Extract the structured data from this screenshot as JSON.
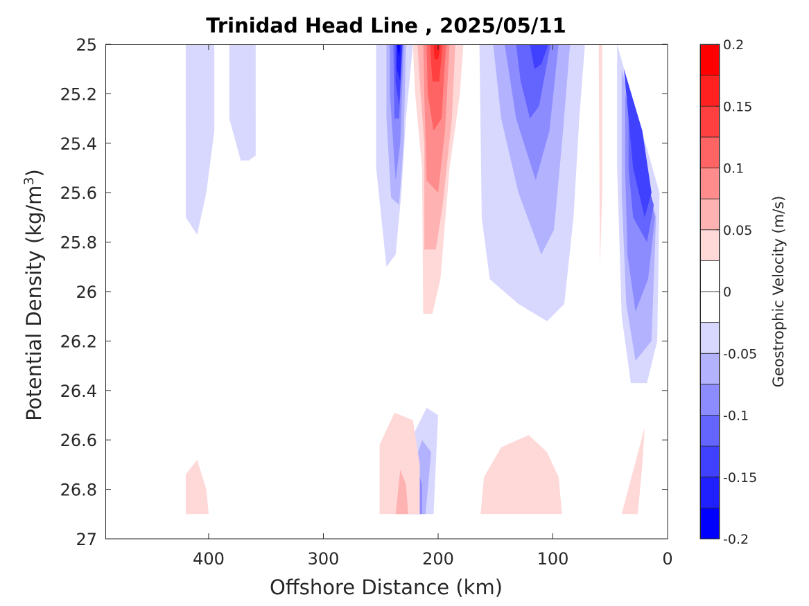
{
  "chart_data": {
    "type": "contour",
    "title": "Trinidad Head Line , 2025/05/11",
    "xlabel": "Offshore Distance (km)",
    "ylabel_main": "Potential Density (kg/m",
    "ylabel_sup": "3",
    "ylabel_tail": ")",
    "x_reversed": true,
    "y_reversed": true,
    "xlim": [
      0,
      490
    ],
    "ylim": [
      25,
      27
    ],
    "xticks": [
      400,
      300,
      200,
      100,
      0
    ],
    "yticks": [
      "25",
      "25.2",
      "25.4",
      "25.6",
      "25.8",
      "26",
      "26.2",
      "26.4",
      "26.6",
      "26.8",
      "27"
    ],
    "colorbar": {
      "label": "Geostrophic Velocity (m/s)",
      "range": [
        -0.2,
        0.2
      ],
      "step": 0.025,
      "ticks": [
        "0.2",
        "0.15",
        "0.1",
        "0.05",
        "0",
        "-0.05",
        "-0.1",
        "-0.15",
        "-0.2"
      ],
      "colors_low_to_high": [
        "#0000ff",
        "#2020ff",
        "#4040ff",
        "#6464ff",
        "#8c8cff",
        "#b2b2ff",
        "#d8d8ff",
        "#ffffff",
        "#ffffff",
        "#ffd8d8",
        "#ffb2b2",
        "#ff8c8c",
        "#ff6464",
        "#ff4040",
        "#ff2020",
        "#ff0000"
      ]
    },
    "regions": [
      {
        "level": -0.025,
        "points": [
          [
            420,
            25
          ],
          [
            395,
            25
          ],
          [
            395,
            25.35
          ],
          [
            402,
            25.6
          ],
          [
            410,
            25.77
          ],
          [
            420,
            25.7
          ]
        ]
      },
      {
        "level": -0.025,
        "points": [
          [
            382,
            25
          ],
          [
            359,
            25
          ],
          [
            359,
            25.45
          ],
          [
            365,
            25.47
          ],
          [
            372,
            25.47
          ],
          [
            382,
            25.3
          ]
        ]
      },
      {
        "level": -0.025,
        "points": [
          [
            254,
            25
          ],
          [
            222,
            25
          ],
          [
            228,
            25.3
          ],
          [
            232,
            25.6
          ],
          [
            237,
            25.85
          ],
          [
            245,
            25.9
          ],
          [
            254,
            25.5
          ]
        ]
      },
      {
        "level": -0.025,
        "points": [
          [
            164,
            25
          ],
          [
            72,
            25
          ],
          [
            77,
            25.3
          ],
          [
            82,
            25.7
          ],
          [
            90,
            26.05
          ],
          [
            105,
            26.12
          ],
          [
            130,
            26.05
          ],
          [
            155,
            25.95
          ],
          [
            162,
            25.7
          ]
        ]
      },
      {
        "level": -0.025,
        "points": [
          [
            44,
            25
          ],
          [
            7,
            25.6
          ],
          [
            9,
            26.2
          ],
          [
            18,
            26.37
          ],
          [
            32,
            26.37
          ],
          [
            40,
            26.1
          ],
          [
            44,
            25.5
          ]
        ]
      },
      {
        "level": -0.025,
        "points": [
          [
            232,
            26.9
          ],
          [
            204,
            26.9
          ],
          [
            200,
            26.5
          ],
          [
            210,
            26.47
          ],
          [
            224,
            26.6
          ]
        ]
      },
      {
        "level": -0.05,
        "points": [
          [
            245,
            25
          ],
          [
            228,
            25
          ],
          [
            230,
            25.4
          ],
          [
            234,
            25.65
          ],
          [
            241,
            25.62
          ],
          [
            245,
            25.3
          ]
        ]
      },
      {
        "level": -0.05,
        "points": [
          [
            152,
            25
          ],
          [
            85,
            25
          ],
          [
            92,
            25.4
          ],
          [
            99,
            25.75
          ],
          [
            110,
            25.85
          ],
          [
            130,
            25.6
          ],
          [
            145,
            25.3
          ]
        ]
      },
      {
        "level": -0.05,
        "points": [
          [
            40,
            25.1
          ],
          [
            10,
            25.7
          ],
          [
            14,
            26.2
          ],
          [
            28,
            26.28
          ],
          [
            36,
            26.05
          ],
          [
            40,
            25.6
          ]
        ]
      },
      {
        "level": -0.05,
        "points": [
          [
            227,
            26.9
          ],
          [
            211,
            26.9
          ],
          [
            206,
            26.65
          ],
          [
            214,
            26.6
          ],
          [
            221,
            26.7
          ]
        ]
      },
      {
        "level": -0.075,
        "points": [
          [
            242,
            25
          ],
          [
            230,
            25
          ],
          [
            233,
            25.4
          ],
          [
            237,
            25.55
          ],
          [
            242,
            25.2
          ]
        ]
      },
      {
        "level": -0.075,
        "points": [
          [
            142,
            25
          ],
          [
            95,
            25
          ],
          [
            103,
            25.35
          ],
          [
            115,
            25.55
          ],
          [
            132,
            25.3
          ]
        ]
      },
      {
        "level": -0.075,
        "points": [
          [
            37,
            25.2
          ],
          [
            11,
            25.7
          ],
          [
            17,
            25.95
          ],
          [
            28,
            26.08
          ],
          [
            35,
            25.85
          ],
          [
            37,
            25.5
          ]
        ]
      },
      {
        "level": -0.075,
        "points": [
          [
            222,
            26.9
          ],
          [
            214,
            26.9
          ],
          [
            214,
            26.78
          ],
          [
            218,
            26.72
          ]
        ]
      },
      {
        "level": -0.1,
        "points": [
          [
            239,
            25
          ],
          [
            231,
            25
          ],
          [
            234,
            25.3
          ],
          [
            238,
            25.3
          ]
        ]
      },
      {
        "level": -0.1,
        "points": [
          [
            132,
            25
          ],
          [
            102,
            25
          ],
          [
            112,
            25.25
          ],
          [
            120,
            25.3
          ],
          [
            128,
            25.15
          ]
        ]
      },
      {
        "level": -0.1,
        "points": [
          [
            34,
            25.3
          ],
          [
            12,
            25.65
          ],
          [
            18,
            25.8
          ],
          [
            30,
            25.7
          ],
          [
            34,
            25.5
          ]
        ]
      },
      {
        "level": -0.125,
        "points": [
          [
            237,
            25
          ],
          [
            231,
            25
          ],
          [
            234,
            25.25
          ],
          [
            237,
            25.15
          ]
        ]
      },
      {
        "level": -0.125,
        "points": [
          [
            120,
            25
          ],
          [
            104,
            25
          ],
          [
            110,
            25.08
          ],
          [
            116,
            25.1
          ]
        ]
      },
      {
        "level": -0.125,
        "points": [
          [
            38,
            25.1
          ],
          [
            22,
            25.35
          ],
          [
            14,
            25.6
          ],
          [
            20,
            25.7
          ],
          [
            30,
            25.5
          ]
        ]
      },
      {
        "level": -0.15,
        "points": [
          [
            236,
            25
          ],
          [
            232,
            25
          ],
          [
            233,
            25.15
          ],
          [
            236,
            25.1
          ]
        ]
      },
      {
        "level": -0.175,
        "points": [
          [
            236,
            25
          ],
          [
            233,
            25
          ],
          [
            234,
            25.05
          ]
        ]
      },
      {
        "level": 0.025,
        "points": [
          [
            222,
            25
          ],
          [
            178,
            25
          ],
          [
            181,
            25.2
          ],
          [
            190,
            25.5
          ],
          [
            198,
            25.95
          ],
          [
            205,
            26.09
          ],
          [
            213,
            26.09
          ],
          [
            214,
            25.5
          ],
          [
            220,
            25.2
          ]
        ]
      },
      {
        "level": 0.025,
        "points": [
          [
            60,
            25
          ],
          [
            57,
            25
          ],
          [
            57,
            25.6
          ],
          [
            59,
            25.9
          ]
        ]
      },
      {
        "level": 0.025,
        "points": [
          [
            420,
            26.9
          ],
          [
            400,
            26.9
          ],
          [
            402,
            26.8
          ],
          [
            410,
            26.68
          ],
          [
            420,
            26.74
          ]
        ]
      },
      {
        "level": 0.025,
        "points": [
          [
            251,
            26.9
          ],
          [
            216,
            26.9
          ],
          [
            216,
            26.7
          ],
          [
            222,
            26.52
          ],
          [
            238,
            26.49
          ],
          [
            251,
            26.62
          ]
        ]
      },
      {
        "level": 0.025,
        "points": [
          [
            163,
            26.9
          ],
          [
            92,
            26.9
          ],
          [
            95,
            26.75
          ],
          [
            105,
            26.65
          ],
          [
            121,
            26.58
          ],
          [
            145,
            26.63
          ],
          [
            160,
            26.75
          ]
        ]
      },
      {
        "level": 0.025,
        "points": [
          [
            40,
            26.9
          ],
          [
            20,
            26.55
          ],
          [
            22,
            26.7
          ],
          [
            26,
            26.9
          ]
        ]
      },
      {
        "level": 0.05,
        "points": [
          [
            218,
            25
          ],
          [
            185,
            25
          ],
          [
            188,
            25.3
          ],
          [
            196,
            25.65
          ],
          [
            202,
            25.83
          ],
          [
            212,
            25.83
          ],
          [
            212,
            25.4
          ],
          [
            216,
            25.15
          ]
        ]
      },
      {
        "level": 0.05,
        "points": [
          [
            237,
            26.9
          ],
          [
            226,
            26.9
          ],
          [
            228,
            26.78
          ],
          [
            233,
            26.72
          ]
        ]
      },
      {
        "level": 0.075,
        "points": [
          [
            213,
            25
          ],
          [
            190,
            25
          ],
          [
            194,
            25.35
          ],
          [
            200,
            25.6
          ],
          [
            210,
            25.55
          ],
          [
            212,
            25.2
          ]
        ]
      },
      {
        "level": 0.1,
        "points": [
          [
            210,
            25
          ],
          [
            193,
            25
          ],
          [
            197,
            25.3
          ],
          [
            204,
            25.35
          ],
          [
            209,
            25.2
          ]
        ]
      },
      {
        "level": 0.125,
        "points": [
          [
            207,
            25
          ],
          [
            196,
            25
          ],
          [
            199,
            25.15
          ],
          [
            205,
            25.15
          ]
        ]
      },
      {
        "level": 0.15,
        "points": [
          [
            204,
            25
          ],
          [
            198,
            25
          ],
          [
            200,
            25.06
          ],
          [
            203,
            25.06
          ]
        ]
      }
    ]
  }
}
